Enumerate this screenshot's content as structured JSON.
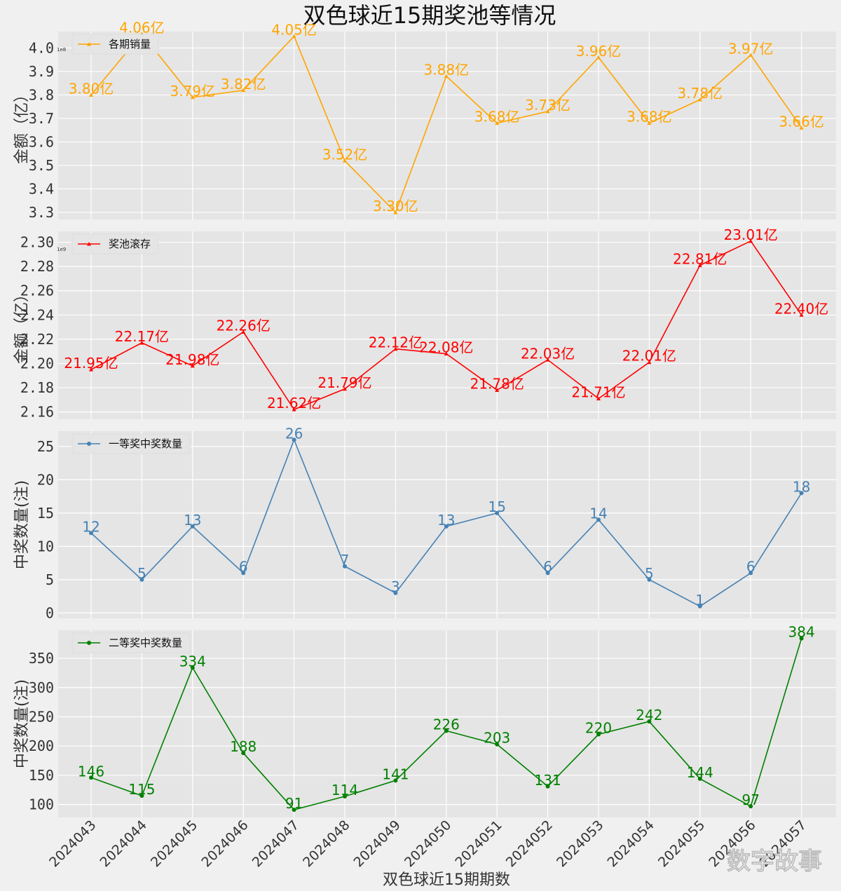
{
  "title": "双色球近15期奖池等情况",
  "xlabel": "双色球近15期期数",
  "watermark": "数字故事",
  "chart_data": {
    "type": "line",
    "categories": [
      "2024043",
      "2024044",
      "2024045",
      "2024046",
      "2024047",
      "2024048",
      "2024049",
      "2024050",
      "2024051",
      "2024052",
      "2024053",
      "2024054",
      "2024055",
      "2024056",
      "2024057"
    ],
    "panels": [
      {
        "legend": "各期销量",
        "ylabel": "金额（亿）",
        "color": "#FFA500",
        "marker": "tri",
        "exponent": "1e8",
        "ylim": [
          3.27,
          4.07
        ],
        "yticks": [
          3.3,
          3.4,
          3.5,
          3.6,
          3.7,
          3.8,
          3.9,
          4.0
        ],
        "ytick_labels": [
          "3.3",
          "3.4",
          "3.5",
          "3.6",
          "3.7",
          "3.8",
          "3.9",
          "4.0"
        ],
        "values": [
          3.8,
          4.06,
          3.79,
          3.82,
          4.05,
          3.52,
          3.3,
          3.88,
          3.68,
          3.73,
          3.96,
          3.68,
          3.78,
          3.97,
          3.66
        ],
        "labels": [
          "3.80亿",
          "4.06亿",
          "3.79亿",
          "3.82亿",
          "4.05亿",
          "3.52亿",
          "3.30亿",
          "3.88亿",
          "3.68亿",
          "3.73亿",
          "3.96亿",
          "3.68亿",
          "3.78亿",
          "3.97亿",
          "3.66亿"
        ]
      },
      {
        "legend": "奖池滚存",
        "ylabel": "金额（亿）",
        "color": "#FF0000",
        "marker": "tri",
        "exponent": "1e9",
        "ylim": [
          2.154,
          2.309
        ],
        "yticks": [
          2.16,
          2.18,
          2.2,
          2.22,
          2.24,
          2.26,
          2.28,
          2.3
        ],
        "ytick_labels": [
          "2.16",
          "2.18",
          "2.20",
          "2.22",
          "2.24",
          "2.26",
          "2.28",
          "2.30"
        ],
        "values": [
          2.195,
          2.217,
          2.198,
          2.226,
          2.162,
          2.179,
          2.212,
          2.208,
          2.178,
          2.203,
          2.171,
          2.201,
          2.281,
          2.301,
          2.24
        ],
        "labels": [
          "21.95亿",
          "22.17亿",
          "21.98亿",
          "22.26亿",
          "21.62亿",
          "21.79亿",
          "22.12亿",
          "22.08亿",
          "21.78亿",
          "22.03亿",
          "21.71亿",
          "22.01亿",
          "22.81亿",
          "23.01亿",
          "22.40亿"
        ]
      },
      {
        "legend": "一等奖中奖数量",
        "ylabel": "中奖数量(注)",
        "color": "#4682B4",
        "marker": "dot",
        "exponent": "",
        "ylim": [
          -0.8,
          27.3
        ],
        "yticks": [
          0,
          5,
          10,
          15,
          20,
          25
        ],
        "ytick_labels": [
          "0",
          "5",
          "10",
          "15",
          "20",
          "25"
        ],
        "values": [
          12,
          5,
          13,
          6,
          26,
          7,
          3,
          13,
          15,
          6,
          14,
          5,
          1,
          6,
          18
        ],
        "labels": [
          "12",
          "5",
          "13",
          "6",
          "26",
          "7",
          "3",
          "13",
          "15",
          "6",
          "14",
          "5",
          "1",
          "6",
          "18"
        ]
      },
      {
        "legend": "二等奖中奖数量",
        "ylabel": "中奖数量(注)",
        "color": "#008000",
        "marker": "dot",
        "exponent": "",
        "ylim": [
          78,
          398
        ],
        "yticks": [
          100,
          150,
          200,
          250,
          300,
          350
        ],
        "ytick_labels": [
          "100",
          "150",
          "200",
          "250",
          "300",
          "350"
        ],
        "values": [
          146,
          115,
          334,
          188,
          91,
          114,
          141,
          226,
          203,
          131,
          220,
          242,
          144,
          97,
          384
        ],
        "labels": [
          "146",
          "115",
          "334",
          "188",
          "91",
          "114",
          "141",
          "226",
          "203",
          "131",
          "220",
          "242",
          "144",
          "97",
          "384"
        ]
      }
    ]
  }
}
